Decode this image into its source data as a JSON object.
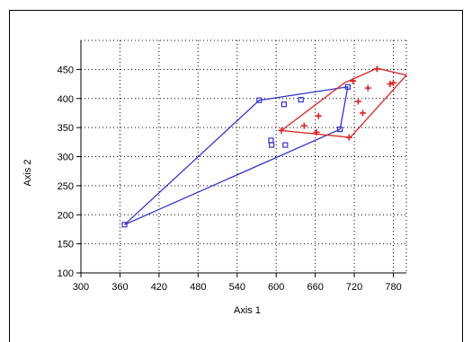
{
  "chart_data": {
    "type": "scatter",
    "xlabel": "Axis 1",
    "ylabel": "Axis 2",
    "xlim": [
      300,
      800
    ],
    "ylim": [
      100,
      500
    ],
    "xticks": [
      300,
      360,
      420,
      480,
      540,
      600,
      660,
      720,
      780
    ],
    "yticks": [
      100,
      150,
      200,
      250,
      300,
      350,
      400,
      450
    ],
    "grid": true,
    "series": [
      {
        "marker": "square",
        "color": "#3333cc",
        "points": [
          [
            367,
            183
          ],
          [
            574,
            397
          ],
          [
            612,
            390
          ],
          [
            638,
            398
          ],
          [
            592,
            328
          ],
          [
            593,
            320
          ],
          [
            614,
            320
          ],
          [
            698,
            347
          ],
          [
            710,
            420
          ]
        ],
        "hull": [
          [
            367,
            183
          ],
          [
            574,
            397
          ],
          [
            710,
            420
          ],
          [
            698,
            347
          ]
        ]
      },
      {
        "marker": "plus",
        "color": "#dd2222",
        "points": [
          [
            608,
            345
          ],
          [
            643,
            353
          ],
          [
            665,
            370
          ],
          [
            662,
            342
          ],
          [
            712,
            333
          ],
          [
            718,
            430
          ],
          [
            726,
            395
          ],
          [
            733,
            375
          ],
          [
            741,
            418
          ],
          [
            755,
            451
          ],
          [
            775,
            425
          ],
          [
            780,
            427
          ]
        ],
        "hull": [
          [
            608,
            345
          ],
          [
            705,
            427
          ],
          [
            755,
            452
          ],
          [
            800,
            440
          ],
          [
            714,
            333
          ]
        ]
      }
    ]
  }
}
